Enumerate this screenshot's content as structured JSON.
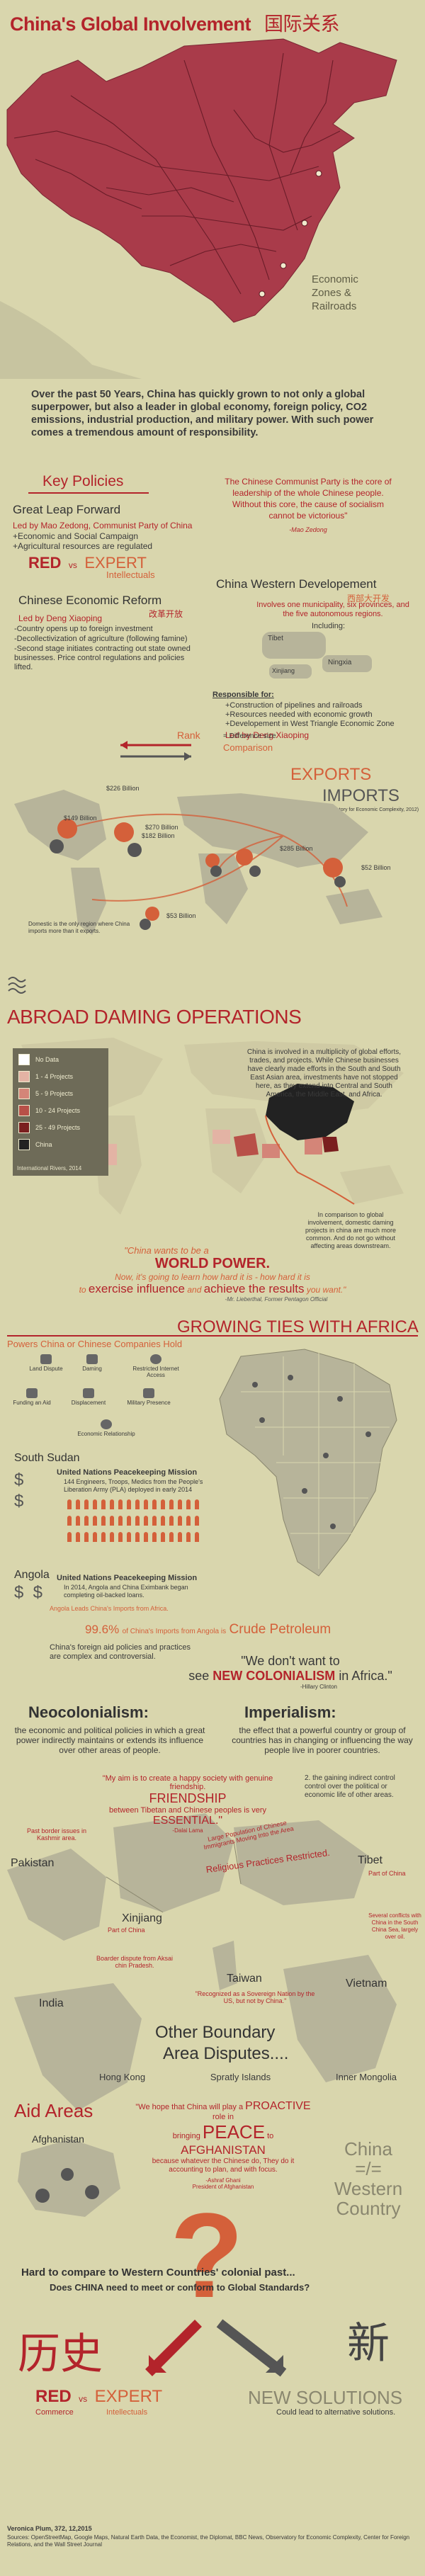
{
  "header": {
    "title": "China's Global Involvement",
    "title_cn": "国际关系",
    "map_label": "Economic Zones & Railroads"
  },
  "intro": {
    "text": "Over the past 50 Years, China has quickly grown to not only a global superpower, but also a leader in global economy, foreign policy, CO2 emissions, industrial production, and military power. With such power comes a tremendous amount of responsibility."
  },
  "key_policies": {
    "heading": "Key Policies",
    "party_quote": "The Chinese Communist Party is the core of leadership of the whole Chinese people. Without this core, the cause of socialism cannot be victorious\"",
    "party_quote_author": "-Mao Zedong",
    "great_leap": {
      "title": "Great Leap Forward",
      "led_by": "Led by Mao Zedong, Communist Party of China",
      "items": [
        "+Economic and Social Campaign",
        "+Agricultural resources are regulated"
      ]
    },
    "red_label": "RED",
    "vs_label": "vs",
    "expert_label": "EXPERT",
    "intellectuals_label": "Intellectuals",
    "reform": {
      "title": "Chinese Economic Reform",
      "title_cn": "改革开放",
      "led_by": "Led by Deng Xiaoping",
      "items": [
        "-Country opens up to foreign investment",
        "-Decollectivization of agriculture (following famine)",
        "-Second stage initiates contracting out state owned businesses. Price control regulations and policies lifted."
      ]
    },
    "western": {
      "title": "China Western Developement",
      "title_cn": "西部大开发",
      "desc": "Involves one municipality, six provinces, and the five autonomous regions.",
      "including": "Including:",
      "tibet": "Tibet",
      "xinjiang": "Xinjiang",
      "ningxia": "Ningxia",
      "responsible_for": "Responsible for:",
      "items": [
        "+Construction of pipelines and railroads",
        "+Resources needed with economic growth",
        "+Developement in West Triangle Economic Zone"
      ],
      "led_by": "Led by Deng Xiaoping"
    }
  },
  "trade": {
    "rank_label": "Rank",
    "difference_label": "= Difference size",
    "comparison_label": "Comparison",
    "exports_label": "EXPORTS",
    "imports_label": "IMPORTS",
    "exports_sub": "(Observatory for Economic Complexity, 2012)",
    "values": [
      "$226 Billion",
      "$149 Billion",
      "$270 Billion",
      "$182 Billion",
      "$285 Billion",
      "$52 Billion",
      "$53 Billion"
    ],
    "note": "Domestic is the only region where China imports more than it exports."
  },
  "dams": {
    "heading": "ABROAD DAMING OPERATIONS",
    "legend": [
      "No Data",
      "1 - 4 Projects",
      "5 - 9 Projects",
      "10 - 24 Projects",
      "25 - 49 Projects",
      "China"
    ],
    "legend_colors": [
      "#ffffff",
      "#e3b3a4",
      "#d48578",
      "#b85048",
      "#7a1f1f",
      "#222222"
    ],
    "source": "International Rivers, 2014",
    "text": "China is involved in a multiplicity of global efforts, trades, and projects. While Chinese businesses have clearly made efforts in the South and South East Asian area, investments have not stopped here, as they extend into Central and South America, the Middle East, and Africa.",
    "compare_text": "In comparison to global involvement, domestic daming projects in china are much more common. And do not go without affecting areas downstream.",
    "quote_1": "\"China wants to be a",
    "quote_world": "WORLD POWER.",
    "quote_2": "Now, it's going to learn how hard it is - how hard it is",
    "quote_3": "to",
    "quote_exercise": "exercise influence",
    "quote_4": "and",
    "quote_achieve": "achieve the results",
    "quote_5": "you want.\"",
    "quote_author": "-Mr. Lieberthal, Former Pentagon Official"
  },
  "africa": {
    "heading": "GROWING TIES WITH AFRICA",
    "powers_heading": "Powers China or Chinese Companies Hold",
    "powers": [
      "Land Dispute",
      "Daming",
      "Restricted Internet Access",
      "Funding an Aid",
      "Displacement",
      "Military Presence",
      "Economic Relationship"
    ],
    "south_sudan": "South Sudan",
    "ss_mission": "United Nations Peacekeeping Mission",
    "ss_desc": "144 Engineers, Troops, Medics from the People's Liberation Army (PLA) deployed in early 2014",
    "angola": "Angola",
    "ang_mission": "United Nations Peacekeeping Mission",
    "ang_desc": "In 2014, Angola and China Eximbank began completing oil-backed loans.",
    "ang_sub": "Angola Leads China's Imports from Africa.",
    "percent": "99.6%",
    "percent_text": "of China's Imports from Angola is",
    "crude": "Crude Petroleum",
    "aid_text": "China's foreign aid policies and practices are complex and controversial.",
    "quote_1": "\"We don't want to",
    "quote_2": "see",
    "quote_new": "NEW COLONIALISM",
    "quote_3": "in Africa.\"",
    "quote_author": "-Hillary Clinton"
  },
  "isms": {
    "neo_title": "Neocolonialism:",
    "neo_text": "the economic and political policies in which a great power indirectly maintains or extends its influence over other areas of people.",
    "imp_title": "Imperialism:",
    "imp_text": "the effect that a powerful country or group of countries has in changing or influencing the way people live in poorer countries.",
    "aim_quote": "\"My aim is to create a happy society with genuine friendship.",
    "friendship": "FRIENDSHIP",
    "aim_quote_2": "between Tibetan and Chinese peoples is very",
    "essential": "ESSENTIAL.\"",
    "aim_author": "-Dalai Lama",
    "gaining_text": "2. the gaining indirect control control over the political or economic life of other areas.",
    "pakistan": "Pakistan",
    "kashmir": "Past border issues in Kashmir area.",
    "xinjiang": "Xinjiang",
    "part_of_china": "Part of China",
    "tibet": "Tibet",
    "tibet_part": "Part of China",
    "religious": "Religious Practices Restricted.",
    "large_pop": "Large Population of Chinese Immigrants Moving Into the Area",
    "taiwan": "Taiwan",
    "taiwan_note": "\"Recognized as a Sovereign Nation by the US, but not by China.\"",
    "india": "India",
    "india_note": "Boarder dispute from Aksai chin Pradesh.",
    "vietnam": "Vietnam",
    "vietnam_note": "Several conflicts with China in the South China Sea, largely over oil."
  },
  "boundary": {
    "heading_1": "Other Boundary",
    "heading_2": "Area Disputes....",
    "items": [
      "Hong Kong",
      "Spratly Islands",
      "Inner Mongolia"
    ]
  },
  "aid": {
    "heading": "Aid Areas",
    "quote_1": "\"We hope that China will play a",
    "proactive": "PROACTIVE",
    "quote_2": "role in",
    "bringing": "bringing",
    "peace": "PEACE",
    "to": "to",
    "afghanistan_caps": "AFGHANISTAN",
    "quote_3": "because whatever the Chinese do, They do it accounting to plan, and with focus.",
    "author": "-Ashraf Ghani",
    "author_title": "President of Afghanistan",
    "afghanistan": "Afghanistan",
    "china_equal_1": "China",
    "china_equal_2": "=/=",
    "china_equal_3": "Western",
    "china_equal_4": "Country"
  },
  "footer": {
    "question_1": "Hard to compare to Western Countries' colonial past...",
    "question_2": "Does CHINA need to meet or conform to Global Standards?",
    "history_cn": "历史",
    "new_cn": "新",
    "red_label": "RED",
    "vs_label": "vs",
    "expert_label": "EXPERT",
    "commerce_label": "Commerce",
    "intellectuals_label": "Intellectuals",
    "new_solutions": "NEW SOLUTIONS",
    "could_lead": "Could lead to alternative solutions.",
    "credit": "Veronica Plum, 372, 12,2015",
    "sources": "Sources: OpenStreetMap, Google Maps, Natural Earth Data, the Economist, the Diplomat, BBC News, Observatory for Economic Complexity, Center for Foreign Relations, and the Wall Street Journal"
  },
  "colors": {
    "background": "#d9d6ad",
    "red": "#b3242b",
    "orange": "#d4603a",
    "map_gray": "#b7b49a",
    "china_red": "#a93b4a"
  }
}
